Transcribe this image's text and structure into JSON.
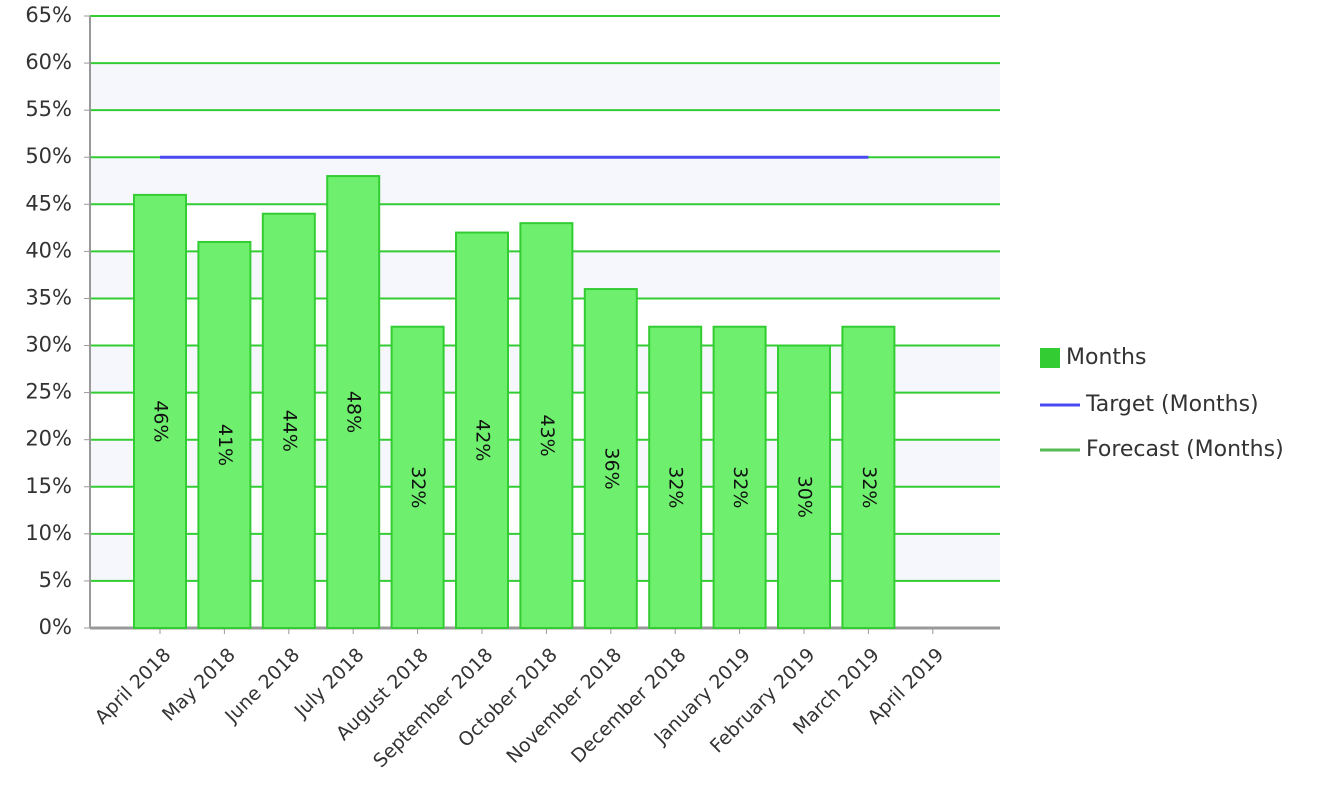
{
  "chart_data": {
    "type": "bar",
    "categories": [
      "April 2018",
      "May 2018",
      "June 2018",
      "July 2018",
      "August 2018",
      "September 2018",
      "October 2018",
      "November 2018",
      "December 2018",
      "January 2019",
      "February 2019",
      "March 2019",
      "April 2019"
    ],
    "series": [
      {
        "name": "Months",
        "type": "bar",
        "color": "#33cc33",
        "values": [
          46,
          41,
          44,
          48,
          32,
          42,
          43,
          36,
          32,
          32,
          30,
          32,
          null
        ],
        "value_labels": [
          "46%",
          "41%",
          "44%",
          "48%",
          "32%",
          "42%",
          "43%",
          "36%",
          "32%",
          "32%",
          "30%",
          "32%",
          null
        ]
      },
      {
        "name": "Target (Months)",
        "type": "line",
        "color": "#4a4af0",
        "values": [
          50,
          50,
          50,
          50,
          50,
          50,
          50,
          50,
          50,
          50,
          50,
          50,
          null
        ]
      },
      {
        "name": "Forecast (Months)",
        "type": "line",
        "color": "#55bb55",
        "values": [
          null,
          null,
          null,
          null,
          null,
          null,
          null,
          null,
          null,
          null,
          null,
          null,
          null
        ]
      }
    ],
    "ylim": [
      0,
      65
    ],
    "yticks": [
      {
        "value": 0,
        "label": "0%"
      },
      {
        "value": 5,
        "label": "5%"
      },
      {
        "value": 10,
        "label": "10%"
      },
      {
        "value": 15,
        "label": "15%"
      },
      {
        "value": 20,
        "label": "20%"
      },
      {
        "value": 25,
        "label": "25%"
      },
      {
        "value": 30,
        "label": "30%"
      },
      {
        "value": 35,
        "label": "35%"
      },
      {
        "value": 40,
        "label": "40%"
      },
      {
        "value": 45,
        "label": "45%"
      },
      {
        "value": 50,
        "label": "50%"
      },
      {
        "value": 55,
        "label": "55%"
      },
      {
        "value": 60,
        "label": "60%"
      },
      {
        "value": 65,
        "label": "65%"
      }
    ],
    "grid": true,
    "legend": "right"
  }
}
